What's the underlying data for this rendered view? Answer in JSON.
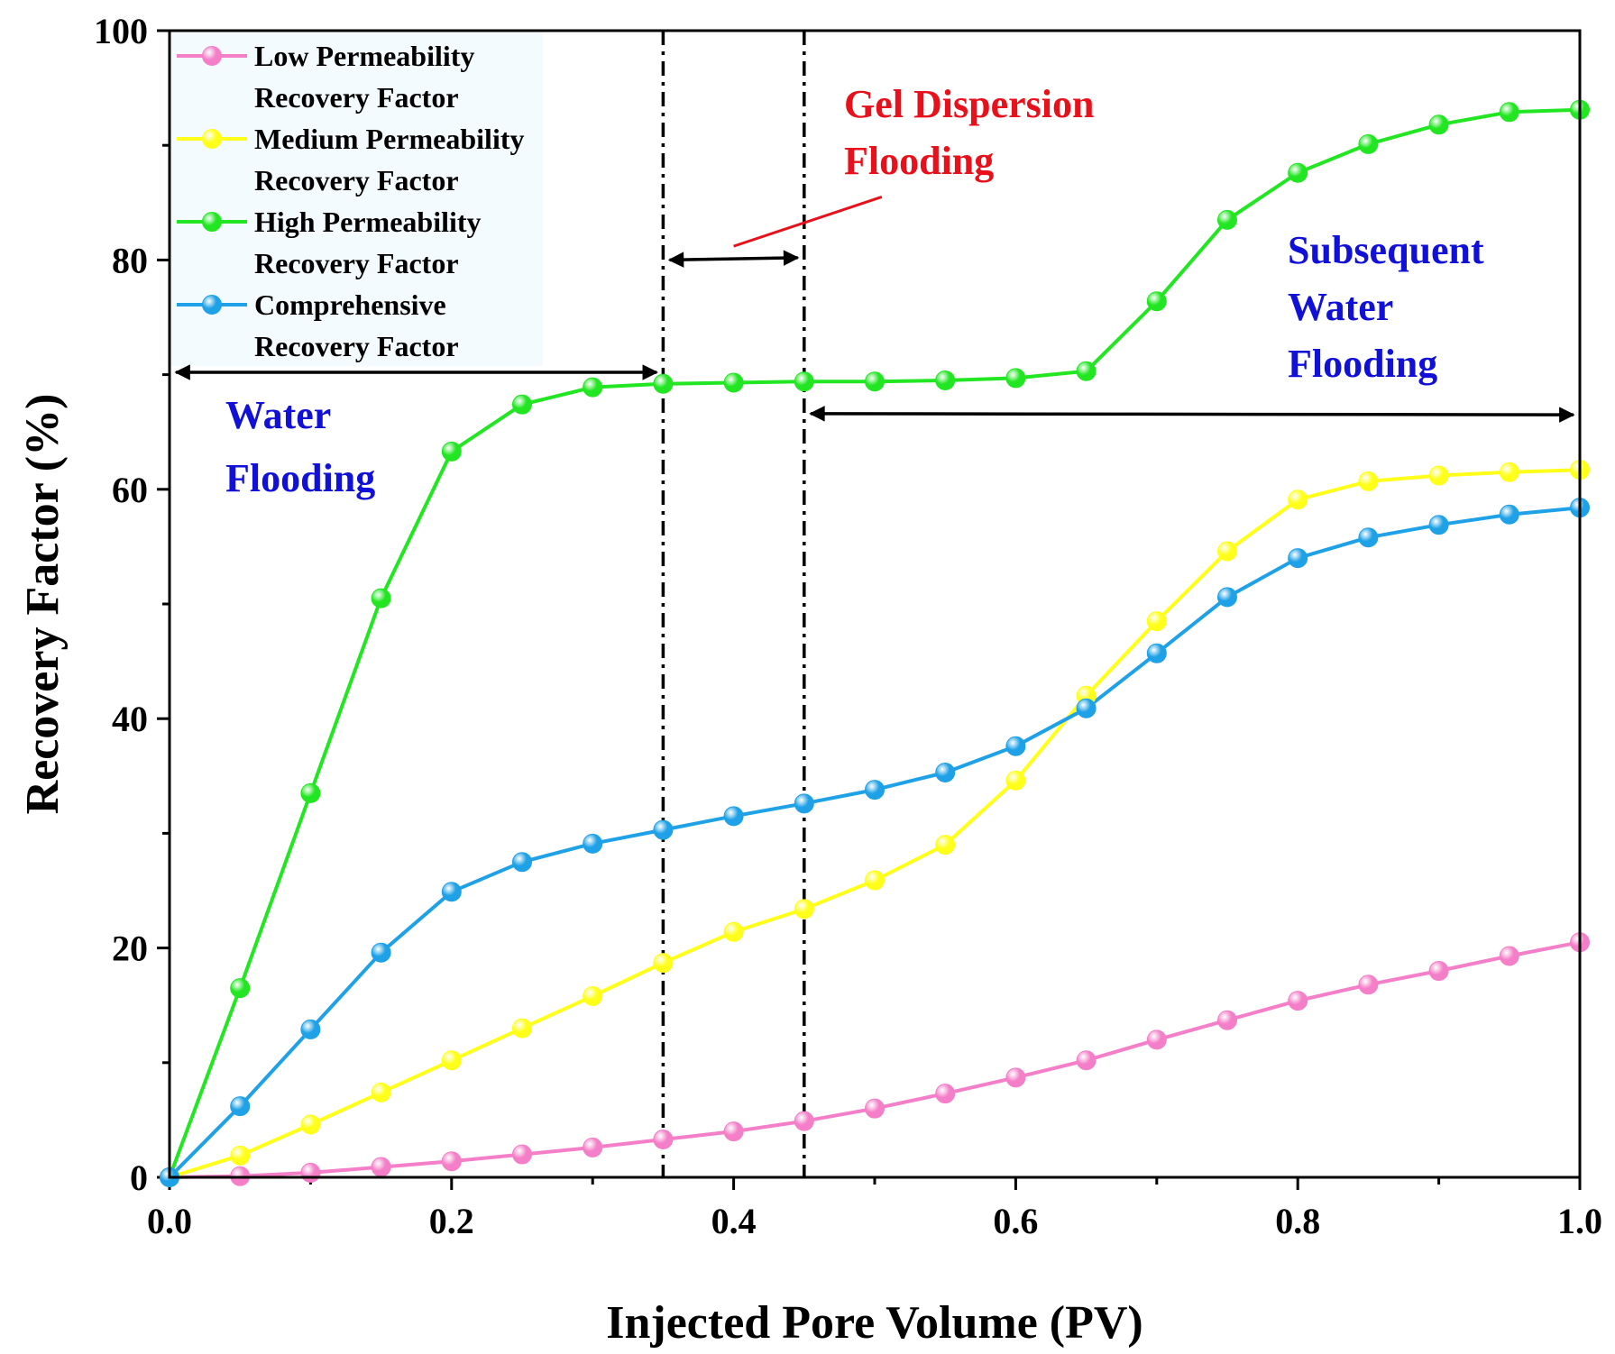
{
  "chart_data": {
    "type": "line",
    "xlabel": "Injected Pore Volume (PV)",
    "ylabel": "Recovery Factor (%)",
    "xlim": [
      0,
      1.0
    ],
    "ylim": [
      0,
      100
    ],
    "xticks": [
      "0.0",
      "0.2",
      "0.4",
      "0.6",
      "0.8",
      "1.0"
    ],
    "yticks": [
      "0",
      "20",
      "40",
      "60",
      "80",
      "100"
    ],
    "x": [
      0,
      0.05,
      0.1,
      0.15,
      0.2,
      0.25,
      0.3,
      0.35,
      0.4,
      0.45,
      0.5,
      0.55,
      0.6,
      0.65,
      0.7,
      0.75,
      0.8,
      0.85,
      0.9,
      0.95,
      1.0
    ],
    "legend_position": "top-left",
    "series": [
      {
        "name_lines": [
          "Low Permeability",
          "Recovery Factor"
        ],
        "color": "#f47fc8",
        "values": [
          0,
          0.1,
          0.4,
          0.9,
          1.4,
          2.0,
          2.6,
          3.3,
          4.0,
          4.9,
          6.0,
          7.3,
          8.7,
          10.2,
          12.0,
          13.7,
          15.4,
          16.8,
          18.0,
          19.3,
          20.5
        ]
      },
      {
        "name_lines": [
          "Medium Permeability",
          "Recovery Factor"
        ],
        "color": "#ffff1a",
        "values": [
          0,
          1.9,
          4.6,
          7.4,
          10.2,
          13.0,
          15.8,
          18.7,
          21.4,
          23.4,
          25.9,
          29.0,
          34.6,
          42.0,
          48.5,
          54.6,
          59.1,
          60.7,
          61.2,
          61.5,
          61.7
        ]
      },
      {
        "name_lines": [
          "High Permeability",
          "Recovery Factor"
        ],
        "color": "#22e622",
        "values": [
          0,
          16.5,
          33.5,
          50.5,
          63.3,
          67.4,
          68.9,
          69.2,
          69.3,
          69.4,
          69.4,
          69.5,
          69.7,
          70.3,
          76.4,
          83.5,
          87.6,
          90.1,
          91.8,
          92.9,
          93.1
        ]
      },
      {
        "name_lines": [
          "Comprehensive",
          "Recovery Factor"
        ],
        "color": "#1ea1e6",
        "values": [
          0,
          6.2,
          12.9,
          19.6,
          24.9,
          27.5,
          29.1,
          30.3,
          31.5,
          32.6,
          33.8,
          35.3,
          37.6,
          40.9,
          45.7,
          50.6,
          54.0,
          55.8,
          56.9,
          57.8,
          58.4
        ]
      }
    ],
    "phase_boundaries_x": [
      0.35,
      0.45
    ],
    "annotations": [
      {
        "lines": [
          "Water",
          "Flooding"
        ],
        "color": "#1010d8"
      },
      {
        "lines": [
          "Gel Dispersion",
          "Flooding"
        ],
        "color": "#e8101a"
      },
      {
        "lines": [
          "Subsequent",
          "Water",
          "Flooding"
        ],
        "color": "#1010d8"
      }
    ]
  }
}
